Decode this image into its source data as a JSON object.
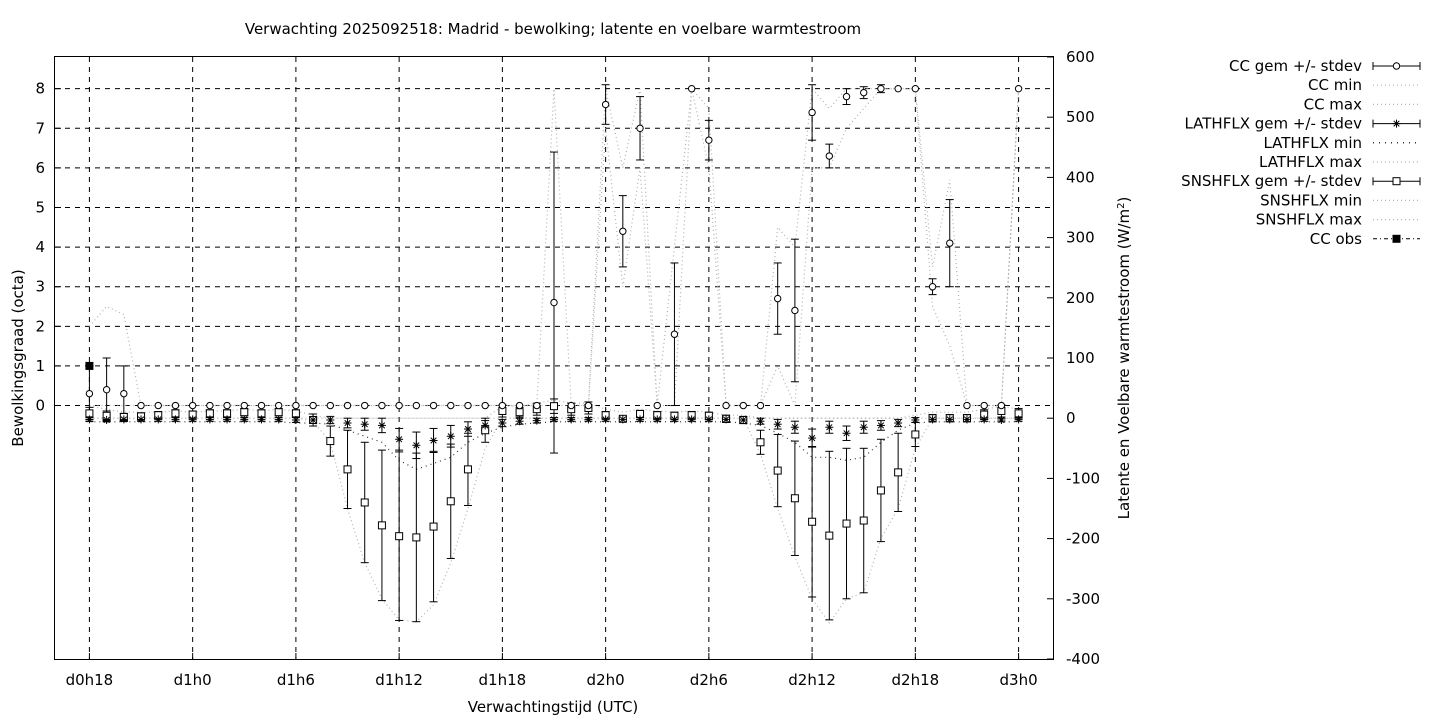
{
  "chart_data": {
    "type": "line",
    "title": "Verwachting 2025092518: Madrid - bewolking; latente en voelbare warmtestroom",
    "xlabel": "Verwachtingstijd (UTC)",
    "ylabel": "Bewolkingsgraad (octa)",
    "y2label_main": "Latente en Voelbare warmtestroom (W/m",
    "y2label_sup": "2",
    "y2label_end": ")",
    "x_unit": "hours since d0h18",
    "xlim": [
      -2,
      56
    ],
    "ylim_left": [
      -6.4,
      8.8
    ],
    "ylim_right": [
      -400,
      600
    ],
    "grid": true,
    "x_ticks": [
      {
        "x": 0,
        "label": "d0h18"
      },
      {
        "x": 6,
        "label": "d1h0"
      },
      {
        "x": 12,
        "label": "d1h6"
      },
      {
        "x": 18,
        "label": "d1h12"
      },
      {
        "x": 24,
        "label": "d1h18"
      },
      {
        "x": 30,
        "label": "d2h0"
      },
      {
        "x": 36,
        "label": "d2h6"
      },
      {
        "x": 42,
        "label": "d2h12"
      },
      {
        "x": 48,
        "label": "d2h18"
      },
      {
        "x": 54,
        "label": "d3h0"
      }
    ],
    "y_ticks_left": [
      {
        "v": 0,
        "label": "0"
      },
      {
        "v": 1,
        "label": "1"
      },
      {
        "v": 2,
        "label": "2"
      },
      {
        "v": 3,
        "label": "3"
      },
      {
        "v": 4,
        "label": "4"
      },
      {
        "v": 5,
        "label": "5"
      },
      {
        "v": 6,
        "label": "6"
      },
      {
        "v": 7,
        "label": "7"
      },
      {
        "v": 8,
        "label": "8"
      }
    ],
    "y_ticks_right": [
      {
        "v": -400,
        "label": "-400"
      },
      {
        "v": -300,
        "label": "-300"
      },
      {
        "v": -200,
        "label": "-200"
      },
      {
        "v": -100,
        "label": "-100"
      },
      {
        "v": 0,
        "label": "0"
      },
      {
        "v": 100,
        "label": "100"
      },
      {
        "v": 200,
        "label": "200"
      },
      {
        "v": 300,
        "label": "300"
      },
      {
        "v": 400,
        "label": "400"
      },
      {
        "v": 500,
        "label": "500"
      },
      {
        "v": 600,
        "label": "600"
      }
    ],
    "x": [
      0,
      1,
      2,
      3,
      4,
      5,
      6,
      7,
      8,
      9,
      10,
      11,
      12,
      13,
      14,
      15,
      16,
      17,
      18,
      19,
      20,
      21,
      22,
      23,
      24,
      25,
      26,
      27,
      28,
      29,
      30,
      31,
      32,
      33,
      34,
      35,
      36,
      37,
      38,
      39,
      40,
      41,
      42,
      43,
      44,
      45,
      46,
      47,
      48,
      49,
      50,
      51,
      52,
      53,
      54
    ],
    "cc_mean": [
      0.3,
      0.4,
      0.3,
      0,
      0,
      0,
      0,
      0,
      0,
      0,
      0,
      0,
      0,
      0,
      0,
      0,
      0,
      0,
      0,
      0,
      0,
      0,
      0,
      0,
      0,
      0,
      0,
      2.6,
      0,
      0,
      7.6,
      4.4,
      7.0,
      0,
      1.8,
      8.0,
      6.7,
      0,
      0,
      0,
      2.7,
      2.4,
      7.4,
      6.3,
      7.8,
      7.9,
      8.0,
      8.0,
      8.0,
      3.0,
      4.1,
      0,
      0,
      0,
      8.0
    ],
    "cc_stdev": [
      0.7,
      0.8,
      0.7,
      0,
      0,
      0,
      0,
      0,
      0,
      0,
      0,
      0,
      0,
      0,
      0,
      0,
      0,
      0,
      0,
      0,
      0,
      0,
      0,
      0,
      0,
      0,
      0,
      3.8,
      0,
      0,
      0.5,
      0.9,
      0.8,
      0,
      1.8,
      0,
      0.5,
      0,
      0,
      0,
      0.9,
      1.8,
      0.7,
      0.3,
      0.2,
      0.15,
      0.1,
      0,
      0,
      0.2,
      1.1,
      0,
      0,
      0,
      0
    ],
    "cc_min": [
      0,
      0,
      0,
      0,
      0,
      0,
      0,
      0,
      0,
      0,
      0,
      0,
      0,
      0,
      0,
      0,
      0,
      0,
      0,
      0,
      0,
      0,
      0,
      0,
      0,
      0,
      0,
      0,
      0,
      0,
      7.0,
      3.0,
      6.0,
      0,
      0,
      8.0,
      6.0,
      0,
      0,
      0,
      1.0,
      0,
      6.0,
      6.0,
      7.0,
      7.5,
      8.0,
      8.0,
      8.0,
      2.5,
      1.5,
      0,
      0,
      0,
      8.0
    ],
    "cc_max": [
      2.0,
      2.5,
      2.3,
      0,
      0,
      0,
      0,
      0,
      0,
      0,
      0,
      0,
      0,
      0,
      0,
      0,
      0,
      0,
      0,
      0,
      0,
      0,
      0,
      0,
      0,
      0,
      0,
      8.0,
      0,
      0,
      8.0,
      6.0,
      8.0,
      0,
      4.0,
      8.0,
      7.5,
      0,
      0,
      0,
      4.5,
      4.0,
      8.0,
      7.5,
      8.0,
      8.0,
      8.0,
      8.0,
      8.0,
      3.5,
      5.7,
      0,
      0,
      0,
      8.0
    ],
    "lat_mean": [
      -2,
      -3,
      -2,
      -2,
      -2,
      -2,
      -2,
      -2,
      -2,
      -2,
      -2,
      -2,
      -3,
      -3,
      -3,
      -8,
      -10,
      -12,
      -35,
      -45,
      -37,
      -30,
      -18,
      -12,
      -8,
      -5,
      -4,
      -2,
      -2,
      -2,
      -2,
      -2,
      -2,
      -2,
      -2,
      -2,
      -2,
      -2,
      -3,
      -5,
      -10,
      -15,
      -33,
      -15,
      -25,
      -15,
      -12,
      -8,
      -3,
      -2,
      -2,
      -2,
      -2,
      -3,
      -2
    ],
    "lat_stdev": [
      3,
      3,
      3,
      3,
      3,
      3,
      3,
      3,
      3,
      3,
      3,
      3,
      4,
      5,
      6,
      8,
      10,
      12,
      18,
      22,
      20,
      18,
      12,
      8,
      6,
      5,
      4,
      3,
      3,
      3,
      3,
      3,
      3,
      3,
      3,
      3,
      3,
      3,
      3,
      5,
      8,
      10,
      15,
      10,
      12,
      10,
      8,
      6,
      4,
      3,
      3,
      3,
      3,
      3,
      3
    ],
    "lat_min": [
      -6,
      -6,
      -6,
      -6,
      -6,
      -6,
      -6,
      -6,
      -6,
      -6,
      -6,
      -6,
      -8,
      -8,
      -10,
      -20,
      -30,
      -40,
      -70,
      -85,
      -75,
      -65,
      -40,
      -25,
      -15,
      -10,
      -8,
      -6,
      -6,
      -6,
      -6,
      -6,
      -6,
      -6,
      -6,
      -6,
      -6,
      -6,
      -8,
      -12,
      -25,
      -40,
      -65,
      -65,
      -70,
      -65,
      -40,
      -20,
      -8,
      -6,
      -6,
      -6,
      -6,
      -6,
      -6
    ],
    "lat_max": [
      0,
      0,
      0,
      0,
      0,
      0,
      0,
      0,
      0,
      0,
      0,
      0,
      0,
      0,
      0,
      0,
      0,
      0,
      0,
      0,
      0,
      0,
      0,
      0,
      0,
      0,
      0,
      0,
      0,
      0,
      0,
      0,
      0,
      0,
      0,
      0,
      0,
      0,
      0,
      0,
      0,
      0,
      0,
      0,
      0,
      0,
      0,
      0,
      0,
      0,
      0,
      0,
      0,
      0,
      0
    ],
    "sns_mean": [
      8,
      4,
      2,
      3,
      5,
      8,
      6,
      8,
      8,
      10,
      8,
      10,
      8,
      -3,
      -38,
      -85,
      -140,
      -178,
      -196,
      -198,
      -180,
      -138,
      -85,
      -20,
      12,
      10,
      15,
      20,
      15,
      17,
      5,
      -1,
      7,
      5,
      4,
      5,
      4,
      -1,
      -3,
      -40,
      -87,
      -133,
      -172,
      -195,
      -175,
      -170,
      -120,
      -90,
      -27,
      0,
      0,
      0,
      6,
      12,
      8
    ],
    "sns_stdev": [
      10,
      8,
      6,
      6,
      6,
      6,
      6,
      6,
      6,
      6,
      6,
      6,
      6,
      10,
      25,
      65,
      100,
      125,
      140,
      140,
      125,
      95,
      60,
      20,
      10,
      8,
      10,
      12,
      10,
      10,
      6,
      4,
      6,
      6,
      6,
      6,
      6,
      6,
      6,
      20,
      60,
      95,
      125,
      140,
      125,
      120,
      85,
      65,
      20,
      6,
      6,
      6,
      8,
      10,
      8
    ],
    "sns_min": [
      0,
      0,
      0,
      0,
      0,
      0,
      0,
      0,
      0,
      0,
      0,
      0,
      0,
      -5,
      -40,
      -150,
      -240,
      -300,
      -335,
      -338,
      -310,
      -240,
      -150,
      -50,
      0,
      0,
      0,
      0,
      0,
      0,
      0,
      0,
      0,
      0,
      0,
      0,
      0,
      0,
      0,
      -60,
      -150,
      -230,
      -300,
      -340,
      -300,
      -290,
      -200,
      -150,
      -50,
      0,
      0,
      0,
      0,
      0,
      0
    ],
    "sns_max": [
      20,
      15,
      10,
      10,
      10,
      12,
      10,
      12,
      12,
      15,
      12,
      15,
      12,
      5,
      0,
      0,
      0,
      0,
      0,
      0,
      0,
      0,
      0,
      0,
      20,
      20,
      25,
      30,
      25,
      25,
      15,
      10,
      15,
      12,
      10,
      12,
      10,
      5,
      5,
      0,
      0,
      0,
      0,
      0,
      0,
      0,
      0,
      0,
      5,
      10,
      10,
      10,
      15,
      20,
      15
    ],
    "cc_obs": [
      {
        "x": 0,
        "y": 1.0
      }
    ],
    "legend_position": "top-right-outside",
    "legend": [
      {
        "label": "CC gem +/- stdev",
        "marker": "circle",
        "style": "errorbar"
      },
      {
        "label": "CC min",
        "style": "dotted"
      },
      {
        "label": "CC max",
        "style": "dotted"
      },
      {
        "label": "LATHFLX gem +/- stdev",
        "marker": "star",
        "style": "errorbar"
      },
      {
        "label": "LATHFLX min",
        "style": "dotted-dark"
      },
      {
        "label": "LATHFLX max",
        "style": "dotted"
      },
      {
        "label": "SNSHFLX gem +/- stdev",
        "marker": "square",
        "style": "errorbar"
      },
      {
        "label": "SNSHFLX min",
        "style": "dotted"
      },
      {
        "label": "SNSHFLX max",
        "style": "dotted"
      },
      {
        "label": "CC obs",
        "marker": "filled-square",
        "style": "dash-dot"
      }
    ]
  }
}
